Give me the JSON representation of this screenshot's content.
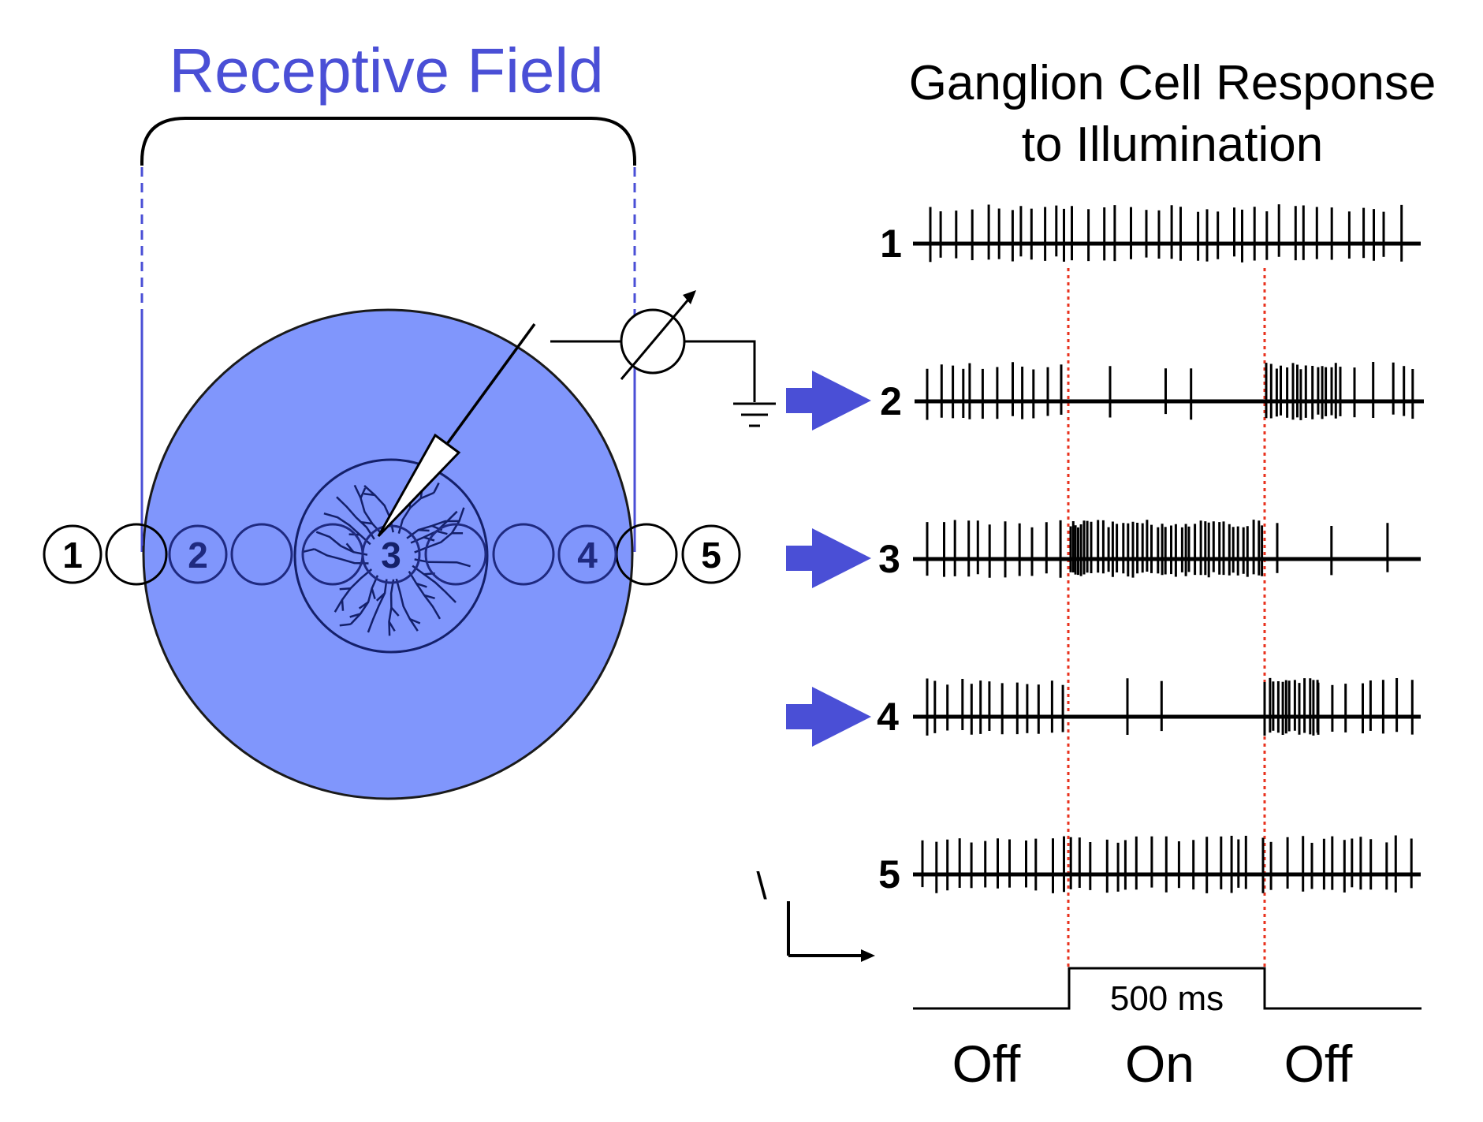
{
  "receptive_field_title": "Receptive Field",
  "response_title": {
    "line1": "Ganglion Cell Response",
    "line2": "to Illumination"
  },
  "colors": {
    "field_fill": "#8096fc",
    "title_blue": "#4a4fd6",
    "arrow_blue": "#4a4fd6",
    "dashed_blue": "#4a4fd6",
    "stim_marker_red": "#e8321e",
    "dark_blue_label": "#1f2a80"
  },
  "stimulus_positions": [
    {
      "label": "1"
    },
    {
      "label": "2"
    },
    {
      "label": "3"
    },
    {
      "label": "4"
    },
    {
      "label": "5"
    }
  ],
  "traces": [
    {
      "label": "1",
      "highlighted": false
    },
    {
      "label": "2",
      "highlighted": true
    },
    {
      "label": "3",
      "highlighted": true
    },
    {
      "label": "4",
      "highlighted": true
    },
    {
      "label": "5",
      "highlighted": false
    }
  ],
  "stimulus": {
    "duration_label": "500 ms",
    "phases": [
      "Off",
      "On",
      "Off"
    ]
  },
  "scale_bar_mark": "\\"
}
